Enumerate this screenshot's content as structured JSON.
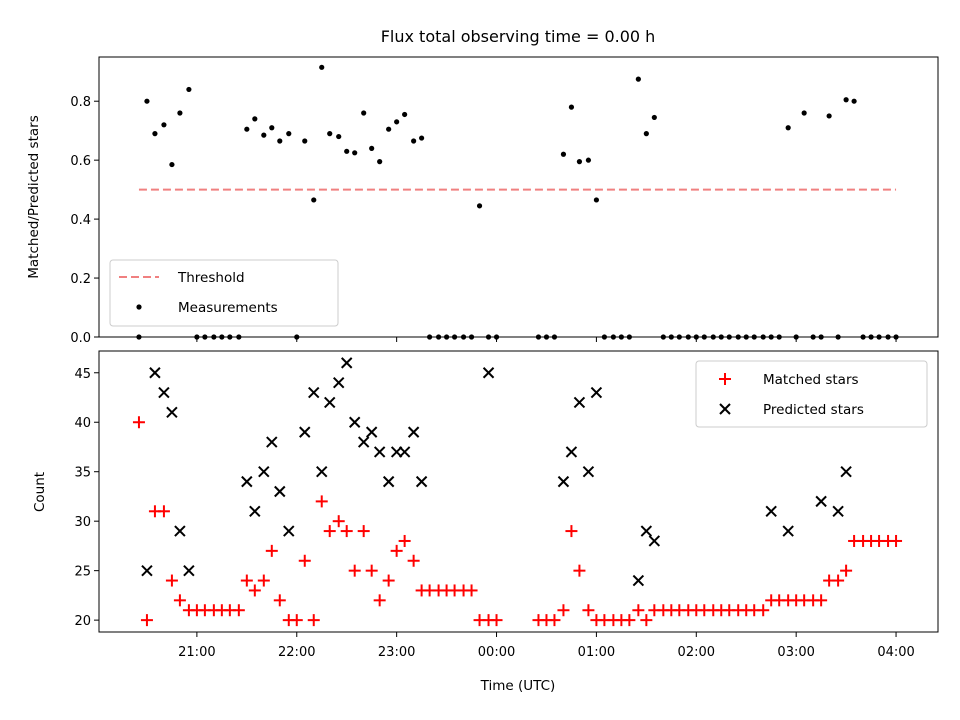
{
  "chart_data": [
    {
      "type": "scatter",
      "title": "Flux total observing time = 0.00 h",
      "xlabel": "",
      "ylabel": "Matched/Predicted stars",
      "ylim": [
        0,
        0.95
      ],
      "yticks": [
        0.0,
        0.2,
        0.4,
        0.6,
        0.8
      ],
      "ytick_labels": [
        "0.0",
        "0.2",
        "0.4",
        "0.6",
        "0.8"
      ],
      "xlim": [
        20.02,
        28.42
      ],
      "xticks": [
        21,
        22,
        23,
        24,
        25,
        26,
        27,
        28
      ],
      "grid": false,
      "legend_position": "bottom-left",
      "threshold": {
        "name": "Threshold",
        "value": 0.5,
        "x_range": [
          20.42,
          28.0
        ],
        "color": "#f08080"
      },
      "series": [
        {
          "name": "Measurements",
          "color": "#000000",
          "x": [
            20.42,
            20.5,
            20.58,
            20.67,
            20.75,
            20.83,
            20.92,
            21.0,
            21.08,
            21.17,
            21.25,
            21.33,
            21.42,
            21.5,
            21.58,
            21.67,
            21.75,
            21.83,
            21.92,
            22.0,
            22.08,
            22.17,
            22.25,
            22.33,
            22.42,
            22.5,
            22.58,
            22.67,
            22.75,
            22.83,
            22.92,
            23.0,
            23.08,
            23.17,
            23.25,
            23.33,
            23.42,
            23.5,
            23.58,
            23.67,
            23.75,
            23.83,
            23.92,
            24.0,
            24.42,
            24.5,
            24.58,
            24.67,
            24.75,
            24.83,
            24.92,
            25.0,
            25.08,
            25.17,
            25.25,
            25.33,
            25.42,
            25.5,
            25.58,
            25.67,
            25.75,
            25.83,
            25.92,
            26.0,
            26.08,
            26.17,
            26.25,
            26.33,
            26.42,
            26.5,
            26.58,
            26.67,
            26.75,
            26.83,
            26.92,
            27.0,
            27.08,
            27.17,
            27.25,
            27.33,
            27.42,
            27.5,
            27.58,
            27.67,
            27.75,
            27.83,
            27.92,
            28.0
          ],
          "y": [
            0.0,
            0.8,
            0.69,
            0.72,
            0.585,
            0.76,
            0.84,
            0.0,
            0.0,
            0.0,
            0.0,
            0.0,
            0.0,
            0.705,
            0.74,
            0.685,
            0.71,
            0.665,
            0.69,
            0.0,
            0.665,
            0.465,
            0.915,
            0.69,
            0.68,
            0.63,
            0.625,
            0.76,
            0.64,
            0.595,
            0.705,
            0.73,
            0.755,
            0.665,
            0.675,
            0.0,
            0.0,
            0.0,
            0.0,
            0.0,
            0.0,
            0.445,
            0.0,
            0.0,
            0.0,
            0.0,
            0.0,
            0.62,
            0.78,
            0.595,
            0.6,
            0.465,
            0.0,
            0.0,
            0.0,
            0.0,
            0.875,
            0.69,
            0.745,
            0.0,
            0.0,
            0.0,
            0.0,
            0.0,
            0.0,
            0.0,
            0.0,
            0.0,
            0.0,
            0.0,
            0.0,
            0.0,
            0.0,
            0.0,
            0.71,
            0.0,
            0.76,
            0.0,
            0.0,
            0.75,
            0.0,
            0.805,
            0.8,
            0.0,
            0.0,
            0.0,
            0.0,
            0.0
          ]
        }
      ]
    },
    {
      "type": "scatter",
      "title": "",
      "xlabel": "Time (UTC)",
      "ylabel": "Count",
      "ylim": [
        18.8,
        47.2
      ],
      "yticks": [
        20,
        25,
        30,
        35,
        40,
        45
      ],
      "ytick_labels": [
        "20",
        "25",
        "30",
        "35",
        "40",
        "45"
      ],
      "xlim": [
        20.02,
        28.42
      ],
      "xticks": [
        21,
        22,
        23,
        24,
        25,
        26,
        27,
        28
      ],
      "xtick_labels": [
        "21:00",
        "22:00",
        "23:00",
        "00:00",
        "01:00",
        "02:00",
        "03:00",
        "04:00"
      ],
      "grid": false,
      "legend_position": "top-right",
      "series": [
        {
          "name": "Matched stars",
          "marker": "plus",
          "color": "#ff0000",
          "x": [
            20.42,
            20.5,
            20.58,
            20.67,
            20.75,
            20.83,
            20.92,
            21.0,
            21.08,
            21.17,
            21.25,
            21.33,
            21.42,
            21.5,
            21.58,
            21.67,
            21.75,
            21.83,
            21.92,
            22.0,
            22.08,
            22.17,
            22.25,
            22.33,
            22.42,
            22.5,
            22.58,
            22.67,
            22.75,
            22.83,
            22.92,
            23.0,
            23.08,
            23.17,
            23.25,
            23.33,
            23.42,
            23.5,
            23.58,
            23.67,
            23.75,
            23.83,
            23.92,
            24.0,
            24.42,
            24.5,
            24.58,
            24.67,
            24.75,
            24.83,
            24.92,
            25.0,
            25.08,
            25.17,
            25.25,
            25.33,
            25.42,
            25.5,
            25.58,
            25.67,
            25.75,
            25.83,
            25.92,
            26.0,
            26.08,
            26.17,
            26.25,
            26.33,
            26.42,
            26.5,
            26.58,
            26.67,
            26.75,
            26.83,
            26.92,
            27.0,
            27.08,
            27.17,
            27.25,
            27.33,
            27.42,
            27.5,
            27.58,
            27.67,
            27.75,
            27.83,
            27.92,
            28.0
          ],
          "y": [
            40,
            20,
            31,
            31,
            24,
            22,
            21,
            21,
            21,
            21,
            21,
            21,
            21,
            24,
            23,
            24,
            27,
            22,
            20,
            20,
            26,
            20,
            32,
            29,
            30,
            29,
            25,
            29,
            25,
            22,
            24,
            27,
            28,
            26,
            23,
            23,
            23,
            23,
            23,
            23,
            23,
            20,
            20,
            20,
            20,
            20,
            20,
            21,
            29,
            25,
            21,
            20,
            20,
            20,
            20,
            20,
            21,
            20,
            21,
            21,
            21,
            21,
            21,
            21,
            21,
            21,
            21,
            21,
            21,
            21,
            21,
            21,
            22,
            22,
            22,
            22,
            22,
            22,
            22,
            24,
            24,
            25,
            28,
            28,
            28,
            28,
            28,
            28
          ]
        },
        {
          "name": "Predicted stars",
          "marker": "x",
          "color": "#000000",
          "x": [
            20.5,
            20.58,
            20.67,
            20.75,
            20.83,
            20.92,
            21.5,
            21.58,
            21.67,
            21.75,
            21.83,
            21.92,
            22.08,
            22.17,
            22.25,
            22.33,
            22.42,
            22.5,
            22.58,
            22.67,
            22.75,
            22.83,
            22.92,
            23.0,
            23.08,
            23.17,
            23.25,
            23.92,
            24.67,
            24.75,
            24.83,
            24.92,
            25.0,
            25.42,
            25.5,
            25.58,
            26.75,
            26.92,
            27.25,
            27.42,
            27.5
          ],
          "y": [
            25,
            45,
            43,
            41,
            29,
            25,
            34,
            31,
            35,
            38,
            33,
            29,
            39,
            43,
            35,
            42,
            44,
            46,
            40,
            38,
            39,
            37,
            34,
            37,
            37,
            39,
            34,
            45,
            34,
            37,
            42,
            35,
            43,
            24,
            29,
            28,
            31,
            29,
            32,
            31,
            35
          ]
        }
      ]
    }
  ]
}
